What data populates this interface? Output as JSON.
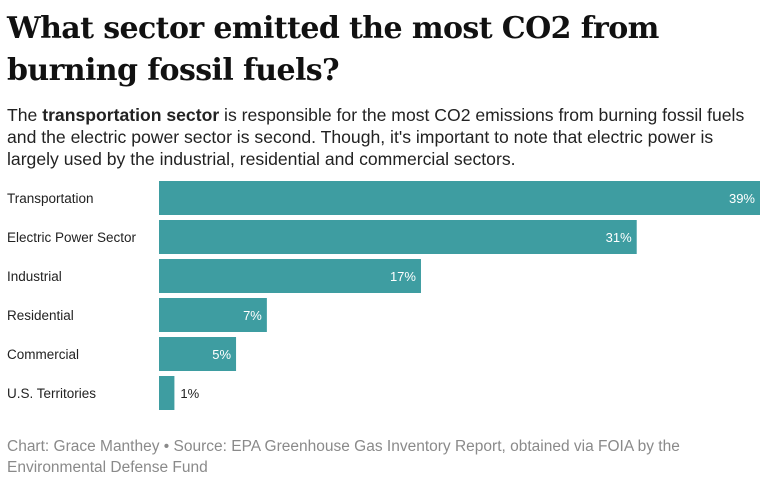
{
  "title": "What sector emitted the most CO2 from burning fossil fuels?",
  "subtitle": {
    "pre": "The ",
    "bold": "transportation sector",
    "post": " is responsible for the most CO2 emissions from burning fossil fuels and the electric power sector is second. Though, it's important to note that electric power is largely used by the industrial, residential and commercial sectors."
  },
  "footer": "Chart: Grace Manthey • Source: EPA Greenhouse Gas Inventory Report, obtained via FOIA by the Environmental Defense Fund",
  "colors": {
    "bar": "#3e9da1",
    "label_inside": "#ffffff",
    "label_outside": "#222222"
  },
  "chart_data": {
    "type": "bar",
    "orientation": "horizontal",
    "categories": [
      "Transportation",
      "Electric Power Sector",
      "Industrial",
      "Residential",
      "Commercial",
      "U.S. Territories"
    ],
    "values": [
      39,
      31,
      17,
      7,
      5,
      1
    ],
    "value_labels": [
      "39%",
      "31%",
      "17%",
      "7%",
      "5%",
      "1%"
    ],
    "unit": "%",
    "xlim": [
      0,
      39
    ],
    "grid": false,
    "legend": "none"
  }
}
